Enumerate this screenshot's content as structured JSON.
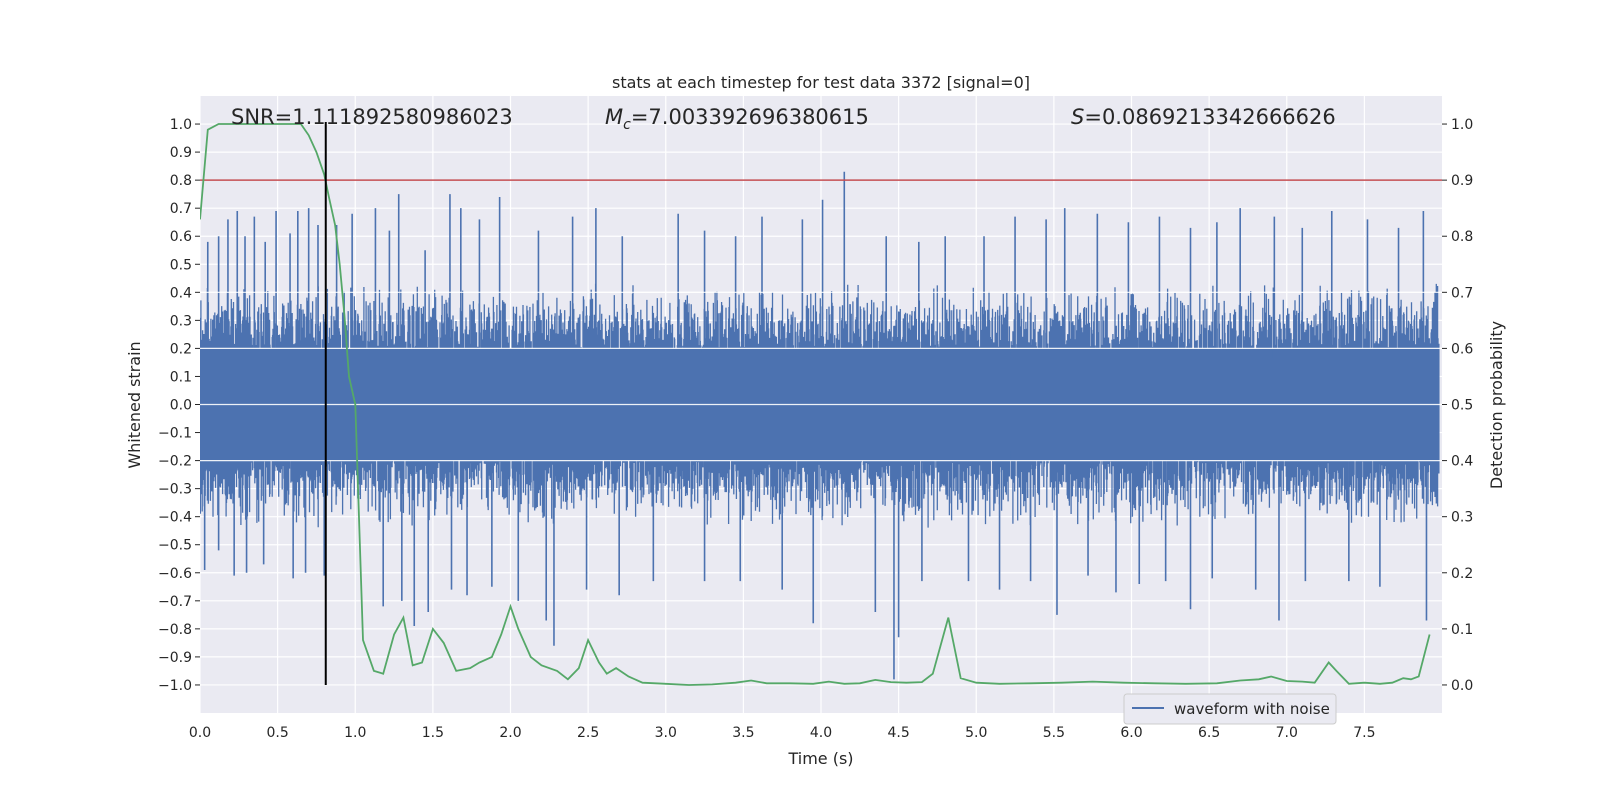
{
  "chart_data": {
    "type": "line",
    "title": "stats at each timestep for test data 3372 [signal=0]",
    "xlabel": "Time (s)",
    "ylabel": "Whitened strain",
    "y2label": "Detection probability",
    "xlim": [
      0.0,
      8.0
    ],
    "ylim": [
      -1.1,
      1.1
    ],
    "y2lim": [
      -0.05,
      1.05
    ],
    "xticks": [
      "0.0",
      "0.5",
      "1.0",
      "1.5",
      "2.0",
      "2.5",
      "3.0",
      "3.5",
      "4.0",
      "4.5",
      "5.0",
      "5.5",
      "6.0",
      "6.5",
      "7.0",
      "7.5"
    ],
    "yticks": [
      "1.0",
      "0.9",
      "0.8",
      "0.7",
      "0.6",
      "0.5",
      "0.4",
      "0.3",
      "0.2",
      "0.1",
      "0.0",
      "−0.1",
      "−0.2",
      "−0.3",
      "−0.4",
      "−0.5",
      "−0.6",
      "−0.7",
      "−0.8",
      "−0.9",
      "−1.0"
    ],
    "y2ticks": [
      "1.0",
      "0.9",
      "0.8",
      "0.7",
      "0.6",
      "0.5",
      "0.4",
      "0.3",
      "0.2",
      "0.1",
      "0.0"
    ],
    "annotations": {
      "snr": "SNR=1.111892580986023",
      "mc": "=7.003392696380615",
      "s": "=0.0869213342666626"
    },
    "threshold": {
      "value": 0.9,
      "axis": "right",
      "color": "#c44e52"
    },
    "event_marker": {
      "x": 0.81,
      "y_from": -1.0,
      "y_to": 1.0,
      "color": "#000000"
    },
    "legend": {
      "label": "waveform with noise",
      "location": "lower-right"
    },
    "waveform": {
      "name": "waveform with noise",
      "color": "#4c72b0",
      "typical_envelope": 0.4,
      "spikes": [
        {
          "x": 0.05,
          "y": 0.58
        },
        {
          "x": 0.12,
          "y": 0.6
        },
        {
          "x": 0.18,
          "y": 0.66
        },
        {
          "x": 0.24,
          "y": 0.69
        },
        {
          "x": 0.29,
          "y": 0.6
        },
        {
          "x": 0.35,
          "y": 0.67
        },
        {
          "x": 0.42,
          "y": 0.58
        },
        {
          "x": 0.49,
          "y": 0.69
        },
        {
          "x": 0.58,
          "y": 0.61
        },
        {
          "x": 0.63,
          "y": 0.69
        },
        {
          "x": 0.7,
          "y": 0.7
        },
        {
          "x": 0.76,
          "y": 0.64
        },
        {
          "x": 0.88,
          "y": 0.64
        },
        {
          "x": 0.98,
          "y": 0.68
        },
        {
          "x": 1.13,
          "y": 0.7
        },
        {
          "x": 1.22,
          "y": 0.62
        },
        {
          "x": 1.28,
          "y": 0.75
        },
        {
          "x": 1.45,
          "y": 0.55
        },
        {
          "x": 1.61,
          "y": 0.75
        },
        {
          "x": 1.68,
          "y": 0.7
        },
        {
          "x": 1.8,
          "y": 0.66
        },
        {
          "x": 1.93,
          "y": 0.74
        },
        {
          "x": 2.18,
          "y": 0.62
        },
        {
          "x": 2.4,
          "y": 0.67
        },
        {
          "x": 2.55,
          "y": 0.7
        },
        {
          "x": 2.72,
          "y": 0.6
        },
        {
          "x": 3.08,
          "y": 0.68
        },
        {
          "x": 3.25,
          "y": 0.62
        },
        {
          "x": 3.45,
          "y": 0.6
        },
        {
          "x": 3.62,
          "y": 0.67
        },
        {
          "x": 3.88,
          "y": 0.66
        },
        {
          "x": 4.01,
          "y": 0.73
        },
        {
          "x": 4.15,
          "y": 0.83
        },
        {
          "x": 4.42,
          "y": 0.6
        },
        {
          "x": 4.63,
          "y": 0.58
        },
        {
          "x": 4.8,
          "y": 0.6
        },
        {
          "x": 5.05,
          "y": 0.6
        },
        {
          "x": 5.25,
          "y": 0.67
        },
        {
          "x": 5.45,
          "y": 0.66
        },
        {
          "x": 5.57,
          "y": 0.7
        },
        {
          "x": 5.78,
          "y": 0.68
        },
        {
          "x": 5.98,
          "y": 0.65
        },
        {
          "x": 6.18,
          "y": 0.67
        },
        {
          "x": 6.38,
          "y": 0.63
        },
        {
          "x": 6.55,
          "y": 0.65
        },
        {
          "x": 6.7,
          "y": 0.7
        },
        {
          "x": 6.92,
          "y": 0.67
        },
        {
          "x": 7.1,
          "y": 0.63
        },
        {
          "x": 7.29,
          "y": 0.69
        },
        {
          "x": 7.52,
          "y": 0.66
        },
        {
          "x": 7.72,
          "y": 0.63
        },
        {
          "x": 7.88,
          "y": 0.69
        },
        {
          "x": 0.03,
          "y": -0.59
        },
        {
          "x": 0.12,
          "y": -0.52
        },
        {
          "x": 0.22,
          "y": -0.61
        },
        {
          "x": 0.3,
          "y": -0.6
        },
        {
          "x": 0.41,
          "y": -0.57
        },
        {
          "x": 0.6,
          "y": -0.62
        },
        {
          "x": 0.68,
          "y": -0.6
        },
        {
          "x": 0.8,
          "y": -0.61
        },
        {
          "x": 1.18,
          "y": -0.72
        },
        {
          "x": 1.3,
          "y": -0.7
        },
        {
          "x": 1.38,
          "y": -0.79
        },
        {
          "x": 1.47,
          "y": -0.74
        },
        {
          "x": 1.62,
          "y": -0.66
        },
        {
          "x": 1.72,
          "y": -0.68
        },
        {
          "x": 1.88,
          "y": -0.65
        },
        {
          "x": 2.05,
          "y": -0.7
        },
        {
          "x": 2.23,
          "y": -0.77
        },
        {
          "x": 2.28,
          "y": -0.86
        },
        {
          "x": 2.49,
          "y": -0.66
        },
        {
          "x": 2.7,
          "y": -0.68
        },
        {
          "x": 2.92,
          "y": -0.63
        },
        {
          "x": 3.25,
          "y": -0.63
        },
        {
          "x": 3.48,
          "y": -0.63
        },
        {
          "x": 3.75,
          "y": -0.66
        },
        {
          "x": 3.95,
          "y": -0.78
        },
        {
          "x": 4.35,
          "y": -0.74
        },
        {
          "x": 4.47,
          "y": -0.98
        },
        {
          "x": 4.5,
          "y": -0.83
        },
        {
          "x": 4.65,
          "y": -0.63
        },
        {
          "x": 4.95,
          "y": -0.63
        },
        {
          "x": 5.15,
          "y": -0.66
        },
        {
          "x": 5.35,
          "y": -0.63
        },
        {
          "x": 5.52,
          "y": -0.75
        },
        {
          "x": 5.72,
          "y": -0.61
        },
        {
          "x": 5.9,
          "y": -0.67
        },
        {
          "x": 6.05,
          "y": -0.64
        },
        {
          "x": 6.22,
          "y": -0.63
        },
        {
          "x": 6.38,
          "y": -0.73
        },
        {
          "x": 6.52,
          "y": -0.62
        },
        {
          "x": 6.8,
          "y": -0.66
        },
        {
          "x": 6.95,
          "y": -0.77
        },
        {
          "x": 7.12,
          "y": -0.63
        },
        {
          "x": 7.4,
          "y": -0.63
        },
        {
          "x": 7.6,
          "y": -0.65
        },
        {
          "x": 7.9,
          "y": -0.77
        }
      ]
    },
    "probability": {
      "name": "detection probability",
      "color": "#55a868",
      "x": [
        0.0,
        0.05,
        0.12,
        0.2,
        0.3,
        0.4,
        0.5,
        0.58,
        0.65,
        0.7,
        0.75,
        0.8,
        0.83,
        0.87,
        0.9,
        0.93,
        0.96,
        1.0,
        1.05,
        1.12,
        1.18,
        1.25,
        1.31,
        1.37,
        1.43,
        1.5,
        1.57,
        1.65,
        1.74,
        1.8,
        1.88,
        1.94,
        2.0,
        2.05,
        2.13,
        2.2,
        2.3,
        2.37,
        2.44,
        2.5,
        2.57,
        2.62,
        2.68,
        2.76,
        2.85,
        3.0,
        3.15,
        3.3,
        3.45,
        3.55,
        3.65,
        3.8,
        3.95,
        4.05,
        4.15,
        4.25,
        4.35,
        4.45,
        4.55,
        4.65,
        4.72,
        4.82,
        4.9,
        5.0,
        5.15,
        5.35,
        5.55,
        5.75,
        5.95,
        6.15,
        6.35,
        6.55,
        6.7,
        6.82,
        6.9,
        7.0,
        7.1,
        7.18,
        7.27,
        7.32,
        7.4,
        7.5,
        7.6,
        7.68,
        7.75,
        7.8,
        7.85,
        7.92
      ],
      "y": [
        0.83,
        0.99,
        1.0,
        1.0,
        1.0,
        1.0,
        1.0,
        1.0,
        1.0,
        0.98,
        0.95,
        0.91,
        0.87,
        0.82,
        0.75,
        0.66,
        0.55,
        0.5,
        0.08,
        0.025,
        0.02,
        0.09,
        0.12,
        0.035,
        0.04,
        0.1,
        0.075,
        0.025,
        0.03,
        0.04,
        0.05,
        0.09,
        0.14,
        0.1,
        0.05,
        0.035,
        0.025,
        0.01,
        0.03,
        0.08,
        0.04,
        0.02,
        0.03,
        0.015,
        0.004,
        0.002,
        0.0,
        0.001,
        0.004,
        0.008,
        0.003,
        0.003,
        0.002,
        0.006,
        0.002,
        0.003,
        0.009,
        0.005,
        0.004,
        0.005,
        0.02,
        0.12,
        0.012,
        0.004,
        0.002,
        0.003,
        0.004,
        0.006,
        0.004,
        0.003,
        0.002,
        0.003,
        0.008,
        0.01,
        0.015,
        0.007,
        0.006,
        0.004,
        0.04,
        0.025,
        0.002,
        0.004,
        0.002,
        0.004,
        0.012,
        0.01,
        0.015,
        0.09
      ]
    }
  }
}
